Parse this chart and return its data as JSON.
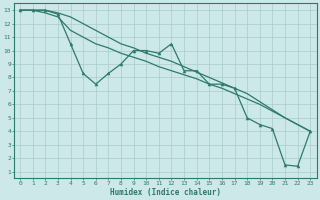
{
  "xlabel": "Humidex (Indice chaleur)",
  "ylabel": "",
  "background_color": "#cce8e8",
  "grid_color": "#aacccc",
  "line_color": "#2d7a6e",
  "xlim_min": -0.5,
  "xlim_max": 23.5,
  "ylim_min": 0.5,
  "ylim_max": 13.5,
  "xticks": [
    0,
    1,
    2,
    3,
    4,
    5,
    6,
    7,
    8,
    9,
    10,
    11,
    12,
    13,
    14,
    15,
    16,
    17,
    18,
    19,
    20,
    21,
    22,
    23
  ],
  "yticks": [
    1,
    2,
    3,
    4,
    5,
    6,
    7,
    8,
    9,
    10,
    11,
    12,
    13
  ],
  "series1_x": [
    0,
    1,
    2,
    3,
    4,
    5,
    6,
    7,
    8,
    9,
    10,
    11,
    12,
    13,
    14,
    15,
    16,
    17,
    18,
    19,
    20,
    21,
    22,
    23
  ],
  "series1_y": [
    13,
    13,
    13,
    12.7,
    10.5,
    8.3,
    7.5,
    8.3,
    9.0,
    10.0,
    10.0,
    9.8,
    10.5,
    8.5,
    8.5,
    7.5,
    7.5,
    7.2,
    5.0,
    4.5,
    4.2,
    1.5,
    1.4,
    4.0
  ],
  "series2_x": [
    0,
    1,
    2,
    3,
    4,
    5,
    6,
    7,
    8,
    9,
    10,
    11,
    12,
    13,
    14,
    15,
    16,
    17,
    18,
    19,
    20,
    21,
    22,
    23
  ],
  "series2_y": [
    13,
    13,
    12.8,
    12.5,
    11.5,
    11.0,
    10.5,
    10.2,
    9.8,
    9.5,
    9.2,
    8.8,
    8.5,
    8.2,
    7.9,
    7.5,
    7.2,
    6.8,
    6.4,
    6.0,
    5.5,
    5.0,
    4.5,
    4.0
  ],
  "series3_x": [
    0,
    1,
    2,
    3,
    4,
    5,
    6,
    7,
    8,
    9,
    10,
    11,
    12,
    13,
    14,
    15,
    16,
    17,
    18,
    19,
    20,
    21,
    22,
    23
  ],
  "series3_y": [
    13,
    13,
    13,
    12.8,
    12.5,
    12.0,
    11.5,
    11.0,
    10.5,
    10.2,
    9.8,
    9.5,
    9.2,
    8.8,
    8.4,
    8.0,
    7.6,
    7.2,
    6.8,
    6.2,
    5.6,
    5.0,
    4.5,
    4.0
  ],
  "xlabel_fontsize": 5.5,
  "tick_fontsize": 4.5,
  "linewidth": 0.9,
  "marker_size": 2.2
}
